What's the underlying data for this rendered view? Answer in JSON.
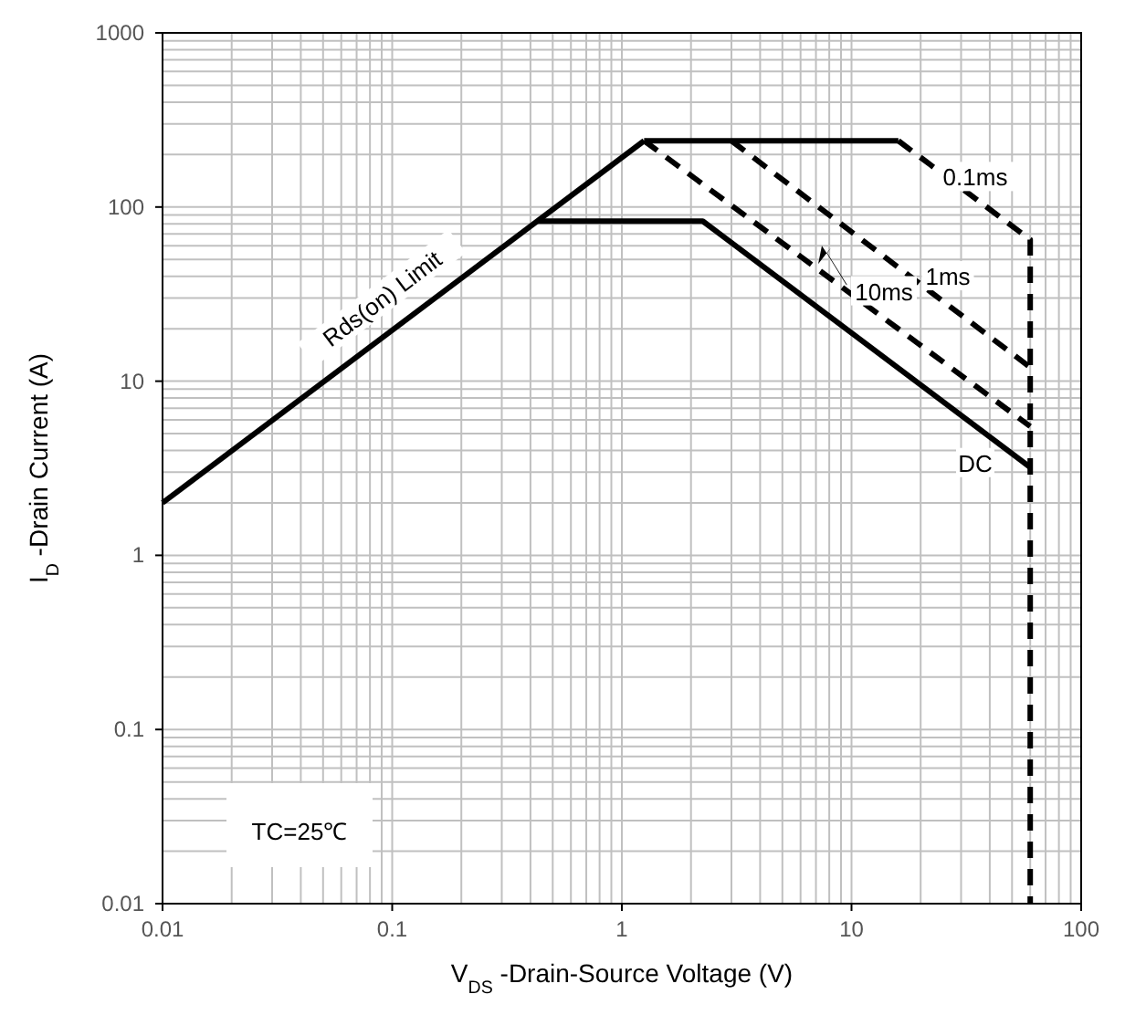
{
  "chart_data": {
    "type": "line",
    "xlabel": "V$_{DS}$-Drain-Source Voltage (V)",
    "ylabel": "I$_{D}$ -Drain Current (A)",
    "log": "xy",
    "grid": true,
    "xlim": [
      0.01,
      100
    ],
    "ylim": [
      0.01,
      1000
    ],
    "xticks": [
      0.01,
      0.1,
      1,
      10,
      100
    ],
    "yticks": [
      0.01,
      0.1,
      1,
      10,
      100,
      1000
    ],
    "series": [
      {
        "name": "Rds(on) Limit",
        "color": "#000000",
        "line_style": "solid",
        "x": [
          0.01,
          1.25
        ],
        "values": [
          2,
          240
        ]
      },
      {
        "color": "#000000",
        "line_style": "solid",
        "x": [
          1.25,
          16
        ],
        "values": [
          240,
          240
        ]
      },
      {
        "name": "0.1ms",
        "color": "#000000",
        "line_style": "dashed",
        "x": [
          16,
          60,
          60
        ],
        "values": [
          240,
          65,
          0.01
        ]
      },
      {
        "name": "1ms",
        "color": "#000000",
        "line_style": "dashed",
        "x": [
          3,
          60
        ],
        "values": [
          240,
          12
        ]
      },
      {
        "name": "10ms",
        "color": "#000000",
        "line_style": "dashed",
        "x": [
          1.25,
          60
        ],
        "values": [
          240,
          5.5
        ]
      },
      {
        "name": "DC",
        "color": "#000000",
        "line_style": "solid",
        "x": [
          0.43,
          2.25,
          60
        ],
        "values": [
          83,
          83,
          3.2
        ]
      }
    ],
    "annotations": [
      "TC=25℃"
    ]
  }
}
